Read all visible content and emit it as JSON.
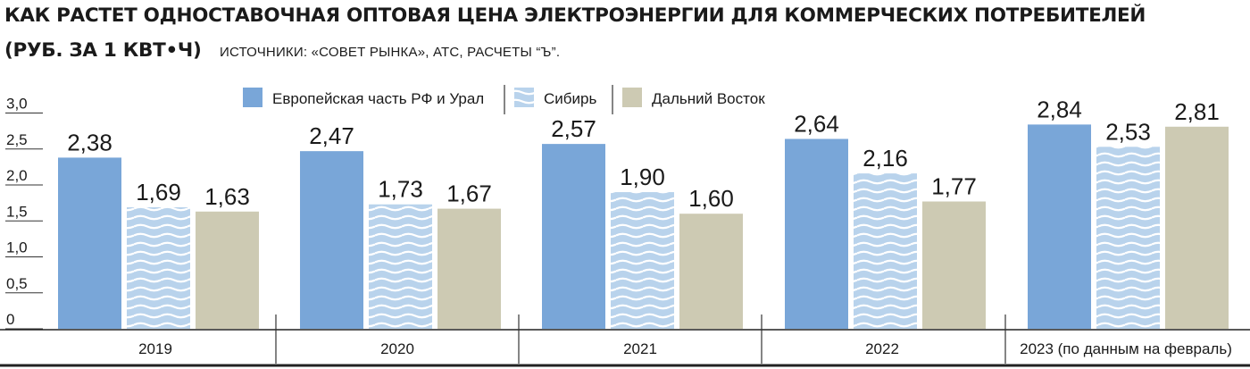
{
  "title": "КАК РАСТЕТ ОДНОСТАВОЧНАЯ ОПТОВАЯ ЦЕНА ЭЛЕКТРОЭНЕРГИИ ДЛЯ КОММЕРЧЕСКИХ ПОТРЕБИТЕЛЕЙ",
  "unit": "(РУБ. ЗА 1 КВТ•Ч)",
  "source": "ИСТОЧНИКИ: «СОВЕТ РЫНКА», АТС, РАСЧЕТЫ “Ъ”.",
  "chart_data": {
    "type": "bar",
    "categories": [
      "2019",
      "2020",
      "2021",
      "2022",
      "2023 (по данным на февраль)"
    ],
    "series": [
      {
        "name": "Европейская часть РФ и Урал",
        "color": "#79a6d8",
        "pattern": "solid",
        "values": [
          2.38,
          2.47,
          2.57,
          2.64,
          2.84
        ],
        "labels": [
          "2,38",
          "2,47",
          "2,57",
          "2,64",
          "2,84"
        ]
      },
      {
        "name": "Сибирь",
        "color": "#b9d3ec",
        "pattern": "waves",
        "values": [
          1.69,
          1.73,
          1.9,
          2.16,
          2.53
        ],
        "labels": [
          "1,69",
          "1,73",
          "1,90",
          "2,16",
          "2,53"
        ]
      },
      {
        "name": "Дальний Восток",
        "color": "#cdcab3",
        "pattern": "solid",
        "values": [
          1.63,
          1.67,
          1.6,
          1.77,
          2.81
        ],
        "labels": [
          "1,63",
          "1,67",
          "1,60",
          "1,77",
          "2,81"
        ]
      }
    ],
    "ylim": [
      0,
      3.0
    ],
    "yticks": [
      0,
      0.5,
      1.0,
      1.5,
      2.0,
      2.5,
      3.0
    ],
    "ytick_labels": [
      "0",
      "0,5",
      "1,0",
      "1,5",
      "2,0",
      "2,5",
      "3,0"
    ],
    "legend_position": "top-center",
    "grid": false
  }
}
